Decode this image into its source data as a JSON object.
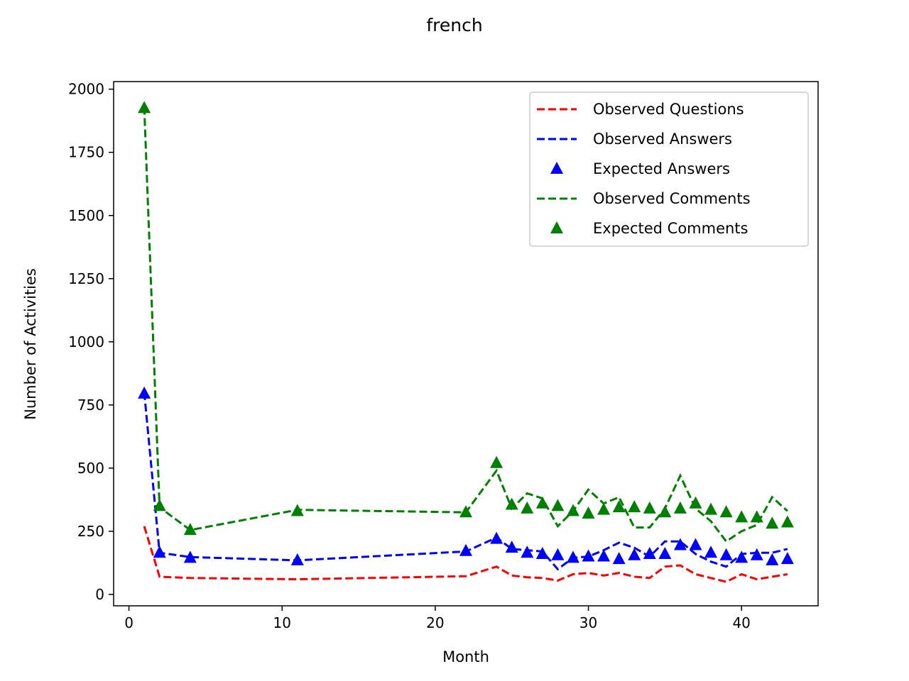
{
  "chart_data": {
    "type": "line",
    "title": "french",
    "xlabel": "Month",
    "ylabel": "Number of Activities",
    "xlim": [
      -1,
      45
    ],
    "ylim": [
      -45,
      2030
    ],
    "xticks": [
      0,
      10,
      20,
      30,
      40
    ],
    "yticks": [
      0,
      250,
      500,
      750,
      1000,
      1250,
      1500,
      1750,
      2000
    ],
    "grid": false,
    "legend_position": "top-right",
    "x": [
      1,
      2,
      4,
      11,
      22,
      24,
      25,
      26,
      27,
      28,
      29,
      30,
      31,
      32,
      33,
      34,
      35,
      36,
      37,
      38,
      39,
      40,
      41,
      42,
      43
    ],
    "series": [
      {
        "name": "Observed Questions",
        "style": "dashed",
        "color": "#ff0000",
        "values": [
          270,
          70,
          65,
          60,
          72,
          110,
          75,
          68,
          65,
          55,
          80,
          85,
          75,
          85,
          70,
          65,
          110,
          115,
          80,
          65,
          50,
          80,
          60,
          70,
          80
        ]
      },
      {
        "name": "Observed Answers",
        "style": "dashed",
        "color": "#0000ff",
        "values": [
          800,
          165,
          148,
          135,
          170,
          225,
          180,
          175,
          170,
          100,
          145,
          150,
          175,
          205,
          185,
          150,
          210,
          210,
          160,
          130,
          110,
          160,
          165,
          165,
          180
        ]
      },
      {
        "name": "Expected Answers",
        "style": "marker",
        "color": "#0000ff",
        "values": [
          795,
          165,
          145,
          135,
          172,
          220,
          185,
          165,
          160,
          155,
          145,
          150,
          150,
          140,
          155,
          160,
          160,
          195,
          195,
          165,
          155,
          145,
          155,
          135,
          140
        ]
      },
      {
        "name": "Observed Comments",
        "style": "dashed",
        "color": "#008000",
        "values": [
          1930,
          345,
          255,
          335,
          325,
          490,
          340,
          400,
          380,
          270,
          330,
          415,
          360,
          385,
          265,
          265,
          340,
          470,
          340,
          290,
          210,
          250,
          275,
          385,
          330
        ]
      },
      {
        "name": "Expected Comments",
        "style": "marker",
        "color": "#008000",
        "values": [
          1925,
          350,
          255,
          330,
          325,
          520,
          355,
          340,
          360,
          350,
          330,
          320,
          335,
          345,
          345,
          340,
          325,
          340,
          360,
          335,
          325,
          305,
          305,
          280,
          285
        ]
      }
    ]
  }
}
